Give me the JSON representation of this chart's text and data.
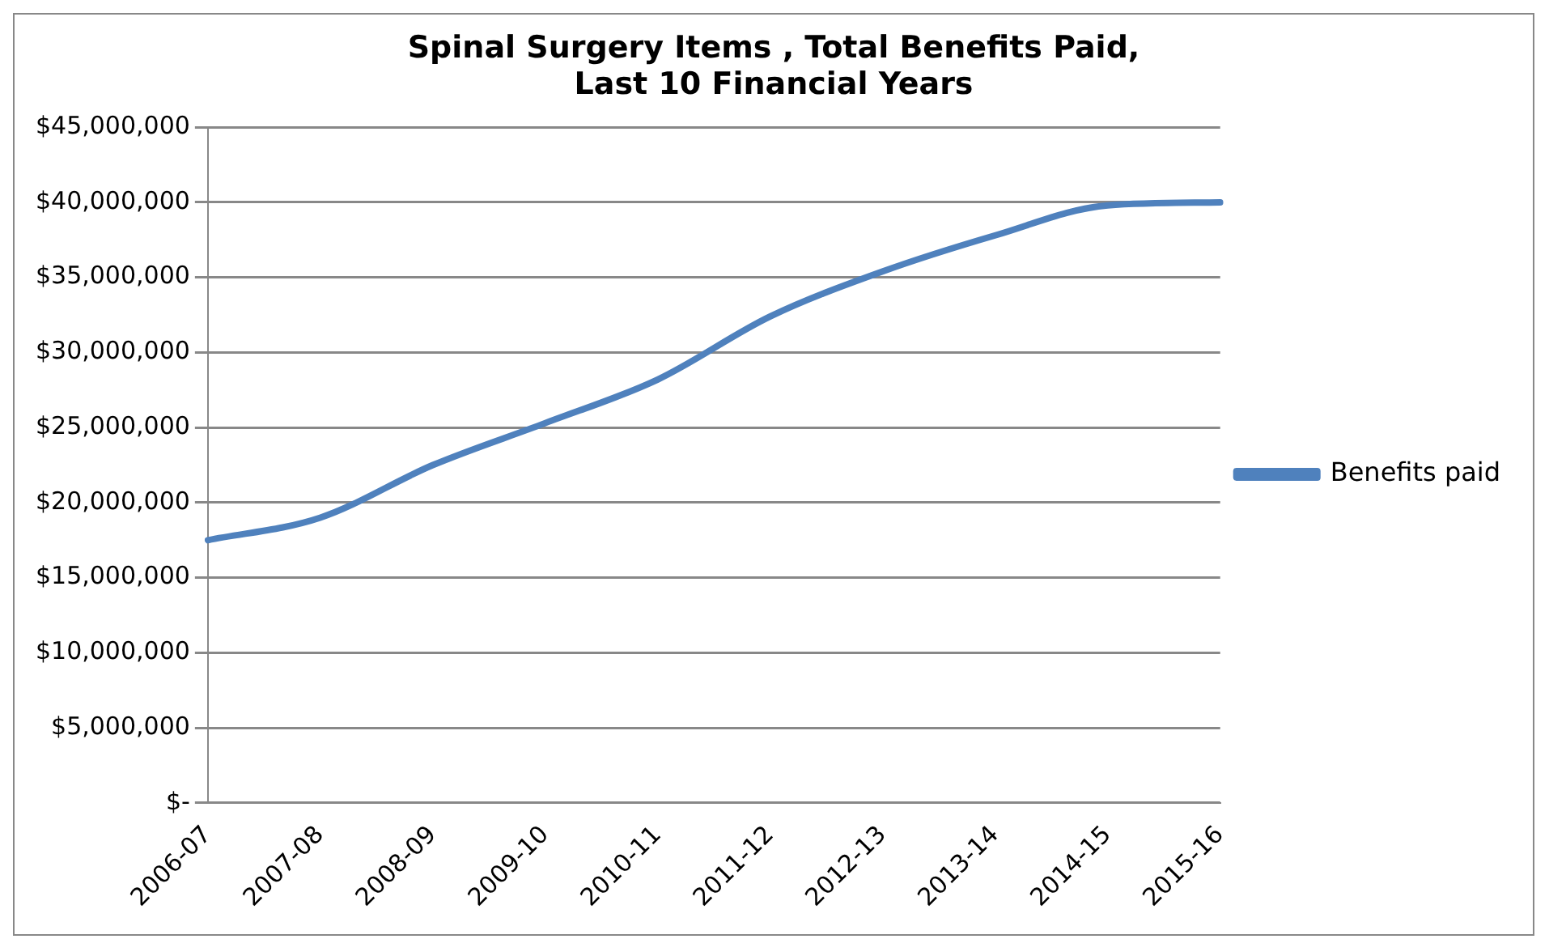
{
  "chart_data": {
    "type": "line",
    "title": [
      "Spinal Surgery Items , Total Benefits Paid,",
      "Last 10 Financial Years"
    ],
    "categories": [
      "2006-07",
      "2007-08",
      "2008-09",
      "2009-10",
      "2010-11",
      "2011-12",
      "2012-13",
      "2013-14",
      "2014-15",
      "2015-16"
    ],
    "series": [
      {
        "name": "Benefits paid",
        "color": "#4f81bd",
        "values": [
          17500000,
          19000000,
          22500000,
          25300000,
          28200000,
          32400000,
          35400000,
          37800000,
          39800000,
          40000000
        ]
      }
    ],
    "ylim": [
      0,
      45000000
    ],
    "yticks": [
      {
        "value": 0,
        "label": "$-"
      },
      {
        "value": 5000000,
        "label": "$5,000,000"
      },
      {
        "value": 10000000,
        "label": "$10,000,000"
      },
      {
        "value": 15000000,
        "label": "$15,000,000"
      },
      {
        "value": 20000000,
        "label": "$20,000,000"
      },
      {
        "value": 25000000,
        "label": "$25,000,000"
      },
      {
        "value": 30000000,
        "label": "$30,000,000"
      },
      {
        "value": 35000000,
        "label": "$35,000,000"
      },
      {
        "value": 40000000,
        "label": "$40,000,000"
      },
      {
        "value": 45000000,
        "label": "$45,000,000"
      }
    ],
    "grid": "y",
    "legend": "right",
    "marker": "none",
    "line_style": "solid"
  }
}
